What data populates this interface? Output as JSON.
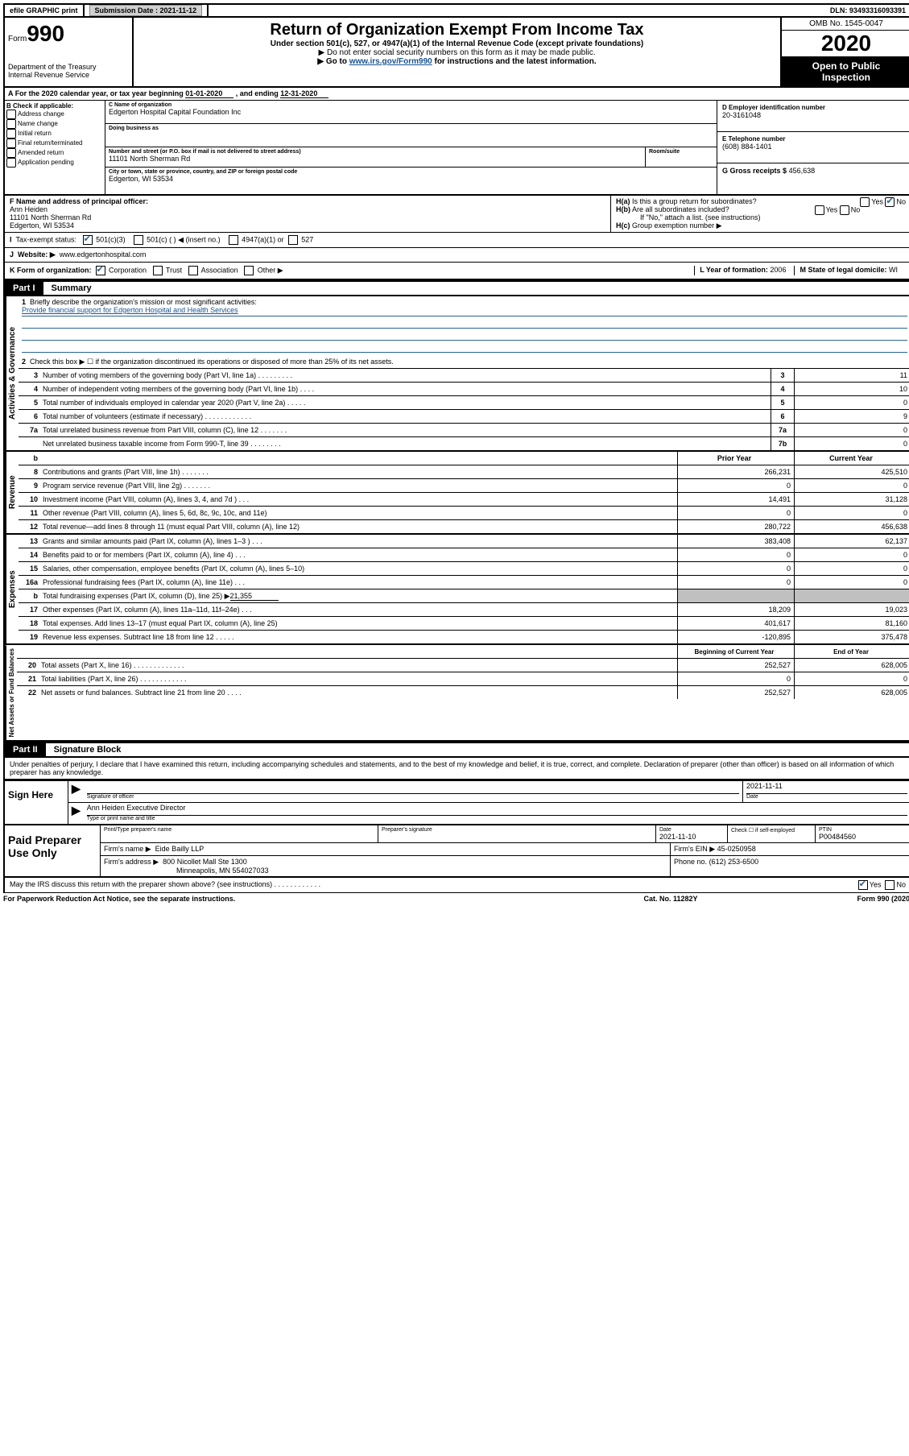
{
  "colors": {
    "text": "#000000",
    "bg": "#ffffff",
    "accent": "#2a6496",
    "link": "#1a5490",
    "grey_fill": "#c0c0c0",
    "btn_bg": "#d0d0d0"
  },
  "topbar": {
    "efile": "efile GRAPHIC print",
    "submission_label": "Submission Date :",
    "submission_date": "2021-11-12",
    "dln_label": "DLN:",
    "dln": "93493316093391"
  },
  "header": {
    "form_word": "Form",
    "form_num": "990",
    "dept1": "Department of the Treasury",
    "dept2": "Internal Revenue Service",
    "title": "Return of Organization Exempt From Income Tax",
    "sub1": "Under section 501(c), 527, or 4947(a)(1) of the Internal Revenue Code (except private foundations)",
    "sub2": "▶ Do not enter social security numbers on this form as it may be made public.",
    "sub3_pre": "▶ Go to ",
    "sub3_link": "www.irs.gov/Form990",
    "sub3_post": " for instructions and the latest information.",
    "omb": "OMB No. 1545-0047",
    "year": "2020",
    "inspect1": "Open to Public",
    "inspect2": "Inspection"
  },
  "row_a": {
    "a_label": "A",
    "text_pre": "For the 2020 calendar year, or tax year beginning ",
    "begin": "01-01-2020",
    "mid": " , and ending ",
    "end": "12-31-2020"
  },
  "box_b": {
    "heading": "B Check if applicable:",
    "opts": [
      "Address change",
      "Name change",
      "Initial return",
      "Final return/terminated",
      "Amended return",
      "Application pending"
    ]
  },
  "box_c": {
    "name_lbl": "C Name of organization",
    "name": "Edgerton Hospital Capital Foundation Inc",
    "dba_lbl": "Doing business as",
    "dba": "",
    "street_lbl": "Number and street (or P.O. box if mail is not delivered to street address)",
    "room_lbl": "Room/suite",
    "street": "11101 North Sherman Rd",
    "city_lbl": "City or town, state or province, country, and ZIP or foreign postal code",
    "city": "Edgerton, WI  53534"
  },
  "box_d": {
    "ein_lbl": "D Employer identification number",
    "ein": "20-3161048",
    "tel_lbl": "E Telephone number",
    "tel": "(608) 884-1401",
    "gross_lbl": "G Gross receipts $",
    "gross": "456,638"
  },
  "box_f": {
    "lbl": "F Name and address of principal officer:",
    "name": "Ann Heiden",
    "addr1": "11101 North Sherman Rd",
    "addr2": "Edgerton, WI  53534"
  },
  "box_h": {
    "ha_lbl": "H(a)",
    "ha_txt": "Is this a group return for subordinates?",
    "hb_lbl": "H(b)",
    "hb_txt": "Are all subordinates included?",
    "note": "If \"No,\" attach a list. (see instructions)",
    "hc_lbl": "H(c)",
    "hc_txt": "Group exemption number ▶",
    "yes": "Yes",
    "no": "No"
  },
  "row_i": {
    "lbl": "I",
    "txt": "Tax-exempt status:",
    "o1": "501(c)(3)",
    "o2": "501(c) (   ) ◀ (insert no.)",
    "o3": "4947(a)(1) or",
    "o4": "527"
  },
  "row_j": {
    "lbl": "J",
    "txt": "Website: ▶",
    "val": "www.edgertonhospital.com"
  },
  "row_k": {
    "lbl": "K Form of organization:",
    "o1": "Corporation",
    "o2": "Trust",
    "o3": "Association",
    "o4": "Other ▶",
    "l_lbl": "L Year of formation:",
    "l_val": "2006",
    "m_lbl": "M State of legal domicile:",
    "m_val": "WI"
  },
  "part1": {
    "tab": "Part I",
    "title": "Summary",
    "side_gov": "Activities & Governance",
    "side_rev": "Revenue",
    "side_exp": "Expenses",
    "side_net": "Net Assets or Fund Balances",
    "l1_num": "1",
    "l1_txt": "Briefly describe the organization's mission or most significant activities:",
    "l1_mission": "Provide financial support for Edgerton Hospital and Health Services",
    "l2_num": "2",
    "l2_txt": "Check this box ▶ ☐  if the organization discontinued its operations or disposed of more than 25% of its net assets.",
    "lines_gov": [
      {
        "n": "3",
        "t": "Number of voting members of the governing body (Part VI, line 1a)  .  .  .  .  .  .  .  .  .",
        "b": "3",
        "v": "11"
      },
      {
        "n": "4",
        "t": "Number of independent voting members of the governing body (Part VI, line 1b)  .  .  .  .",
        "b": "4",
        "v": "10"
      },
      {
        "n": "5",
        "t": "Total number of individuals employed in calendar year 2020 (Part V, line 2a)  .  .  .  .  .",
        "b": "5",
        "v": "0"
      },
      {
        "n": "6",
        "t": "Total number of volunteers (estimate if necessary)  .  .  .  .  .  .  .  .  .  .  .  .",
        "b": "6",
        "v": "9"
      },
      {
        "n": "7a",
        "t": "Total unrelated business revenue from Part VIII, column (C), line 12  .  .  .  .  .  .  .",
        "b": "7a",
        "v": "0"
      },
      {
        "n": "",
        "t": "Net unrelated business taxable income from Form 990-T, line 39  .  .  .  .  .  .  .  .",
        "b": "7b",
        "v": "0"
      }
    ],
    "hdr_b": "b",
    "hdr_prior": "Prior Year",
    "hdr_curr": "Current Year",
    "lines_rev": [
      {
        "n": "8",
        "t": "Contributions and grants (Part VIII, line 1h)  .  .  .  .  .  .  .",
        "p": "266,231",
        "c": "425,510"
      },
      {
        "n": "9",
        "t": "Program service revenue (Part VIII, line 2g)  .  .  .  .  .  .  .",
        "p": "0",
        "c": "0"
      },
      {
        "n": "10",
        "t": "Investment income (Part VIII, column (A), lines 3, 4, and 7d )  .  .  .",
        "p": "14,491",
        "c": "31,128"
      },
      {
        "n": "11",
        "t": "Other revenue (Part VIII, column (A), lines 5, 6d, 8c, 9c, 10c, and 11e)",
        "p": "0",
        "c": "0"
      },
      {
        "n": "12",
        "t": "Total revenue—add lines 8 through 11 (must equal Part VIII, column (A), line 12)",
        "p": "280,722",
        "c": "456,638"
      }
    ],
    "lines_exp": [
      {
        "n": "13",
        "t": "Grants and similar amounts paid (Part IX, column (A), lines 1–3 )  .  .  .",
        "p": "383,408",
        "c": "62,137"
      },
      {
        "n": "14",
        "t": "Benefits paid to or for members (Part IX, column (A), line 4)  .  .  .",
        "p": "0",
        "c": "0"
      },
      {
        "n": "15",
        "t": "Salaries, other compensation, employee benefits (Part IX, column (A), lines 5–10)",
        "p": "0",
        "c": "0"
      },
      {
        "n": "16a",
        "t": "Professional fundraising fees (Part IX, column (A), line 11e)  .  .  .",
        "p": "0",
        "c": "0"
      }
    ],
    "line_b": {
      "n": "b",
      "t_pre": "Total fundraising expenses (Part IX, column (D), line 25) ▶",
      "t_val": "21,355"
    },
    "lines_exp2": [
      {
        "n": "17",
        "t": "Other expenses (Part IX, column (A), lines 11a–11d, 11f–24e)  .  .  .",
        "p": "18,209",
        "c": "19,023"
      },
      {
        "n": "18",
        "t": "Total expenses. Add lines 13–17 (must equal Part IX, column (A), line 25)",
        "p": "401,617",
        "c": "81,160"
      },
      {
        "n": "19",
        "t": "Revenue less expenses. Subtract line 18 from line 12  .  .  .  .  .",
        "p": "-120,895",
        "c": "375,478"
      }
    ],
    "hdr_boy": "Beginning of Current Year",
    "hdr_eoy": "End of Year",
    "lines_net": [
      {
        "n": "20",
        "t": "Total assets (Part X, line 16)  .  .  .  .  .  .  .  .  .  .  .  .  .",
        "p": "252,527",
        "c": "628,005"
      },
      {
        "n": "21",
        "t": "Total liabilities (Part X, line 26)  .  .  .  .  .  .  .  .  .  .  .  .",
        "p": "0",
        "c": "0"
      },
      {
        "n": "22",
        "t": "Net assets or fund balances. Subtract line 21 from line 20  .  .  .  .",
        "p": "252,527",
        "c": "628,005"
      }
    ]
  },
  "part2": {
    "tab": "Part II",
    "title": "Signature Block",
    "decl": "Under penalties of perjury, I declare that I have examined this return, including accompanying schedules and statements, and to the best of my knowledge and belief, it is true, correct, and complete. Declaration of preparer (other than officer) is based on all information of which preparer has any knowledge.",
    "sign_here": "Sign Here",
    "sig_of_officer": "Signature of officer",
    "date_lbl": "Date",
    "date_val": "2021-11-11",
    "officer_name": "Ann Heiden  Executive Director",
    "type_name": "Type or print name and title"
  },
  "prep": {
    "title": "Paid Preparer Use Only",
    "h_print": "Print/Type preparer's name",
    "h_sig": "Preparer's signature",
    "h_date": "Date",
    "date_val": "2021-11-10",
    "h_check": "Check ☐ if self-employed",
    "h_ptin": "PTIN",
    "ptin": "P00484560",
    "firm_name_lbl": "Firm's name      ▶",
    "firm_name": "Eide Bailly LLP",
    "firm_ein_lbl": "Firm's EIN ▶",
    "firm_ein": "45-0250958",
    "firm_addr_lbl": "Firm's address ▶",
    "firm_addr1": "800 Nicollet Mall Ste 1300",
    "firm_addr2": "Minneapolis, MN  554027033",
    "phone_lbl": "Phone no.",
    "phone": "(612) 253-6500"
  },
  "discuss": {
    "txt": "May the IRS discuss this return with the preparer shown above? (see instructions)  .  .  .  .  .  .  .  .  .  .  .  .",
    "yes": "Yes",
    "no": "No"
  },
  "footer": {
    "left": "For Paperwork Reduction Act Notice, see the separate instructions.",
    "mid": "Cat. No. 11282Y",
    "right": "Form 990 (2020)"
  }
}
